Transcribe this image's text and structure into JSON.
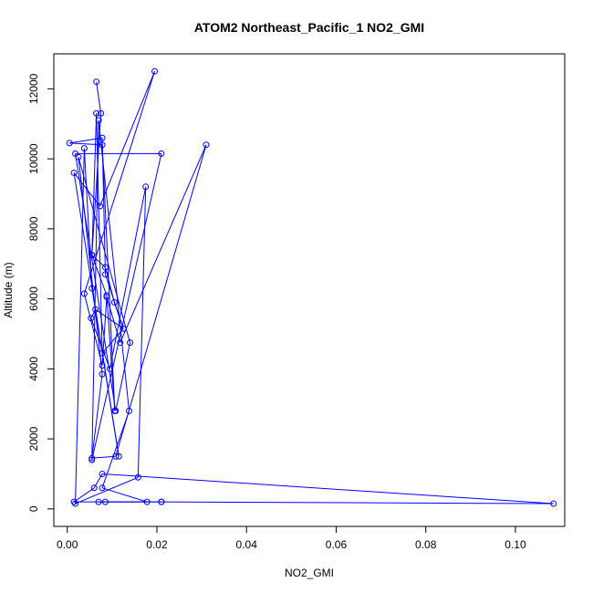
{
  "chart_data": {
    "type": "line",
    "title": "ATOM2 Northeast_Pacific_1 NO2_GMI",
    "xlabel": "NO2_GMI",
    "ylabel": "Altitude (m)",
    "xlim": [
      -0.003,
      0.111
    ],
    "ylim": [
      -500,
      13000
    ],
    "x_ticks": [
      0.0,
      0.02,
      0.04,
      0.06,
      0.08,
      0.1
    ],
    "x_tick_labels": [
      "0.00",
      "0.02",
      "0.04",
      "0.06",
      "0.08",
      "0.10"
    ],
    "y_ticks": [
      0,
      2000,
      4000,
      6000,
      8000,
      10000,
      12000
    ],
    "y_tick_labels": [
      "0",
      "2000",
      "4000",
      "6000",
      "8000",
      "10000",
      "12000"
    ],
    "grid": false,
    "line_style": "lines-with-open-circles",
    "series": [
      {
        "color": "#0000ff",
        "x": [
          0.0065,
          0.0075,
          0.0055,
          0.0085,
          0.0105,
          0.0125,
          0.0078,
          0.0065,
          0.0055,
          0.0088,
          0.0106,
          0.0078,
          0.0005,
          0.0078,
          0.0085,
          0.0125,
          0.0063,
          0.0053,
          0.0095,
          0.0175,
          0.0158,
          0.0018,
          0.0038,
          0.0055,
          0.0115,
          0.0015,
          0.0073,
          0.0195,
          0.0038,
          0.0078,
          0.0088,
          0.0118,
          0.031,
          0.0108,
          0.0055,
          0.0078,
          0.0025,
          0.014,
          0.0108,
          0.0018,
          0.021,
          0.0055,
          0.007,
          0.0138,
          0.0078,
          0.0178,
          0.007,
          0.021,
          0.1085,
          0.0078,
          0.006,
          0.0015,
          0.0085,
          0.021
        ],
        "y": [
          12200,
          11300,
          7250,
          6900,
          5900,
          5150,
          4450,
          11300,
          7250,
          6100,
          2800,
          10400,
          10450,
          10600,
          6700,
          5150,
          5700,
          5450,
          4000,
          9200,
          900,
          150,
          10300,
          6300,
          1500,
          9600,
          8650,
          12500,
          6150,
          4100,
          6050,
          4750,
          10400,
          1500,
          1450,
          3850,
          10050,
          4750,
          2800,
          10150,
          10150,
          1400,
          11100,
          2800,
          600,
          200,
          200,
          200,
          150,
          1000,
          600,
          200,
          200,
          200
        ]
      }
    ]
  }
}
